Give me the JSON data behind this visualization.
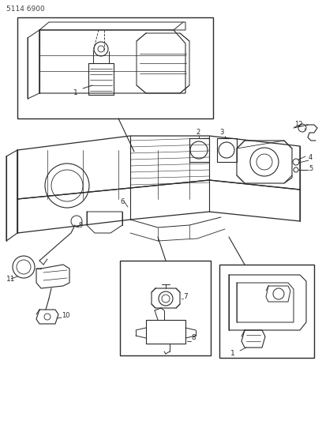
{
  "bg_color": "#ffffff",
  "line_color": "#2a2a2a",
  "title": "5114 6900",
  "fig_width": 4.08,
  "fig_height": 5.33,
  "dpi": 100
}
